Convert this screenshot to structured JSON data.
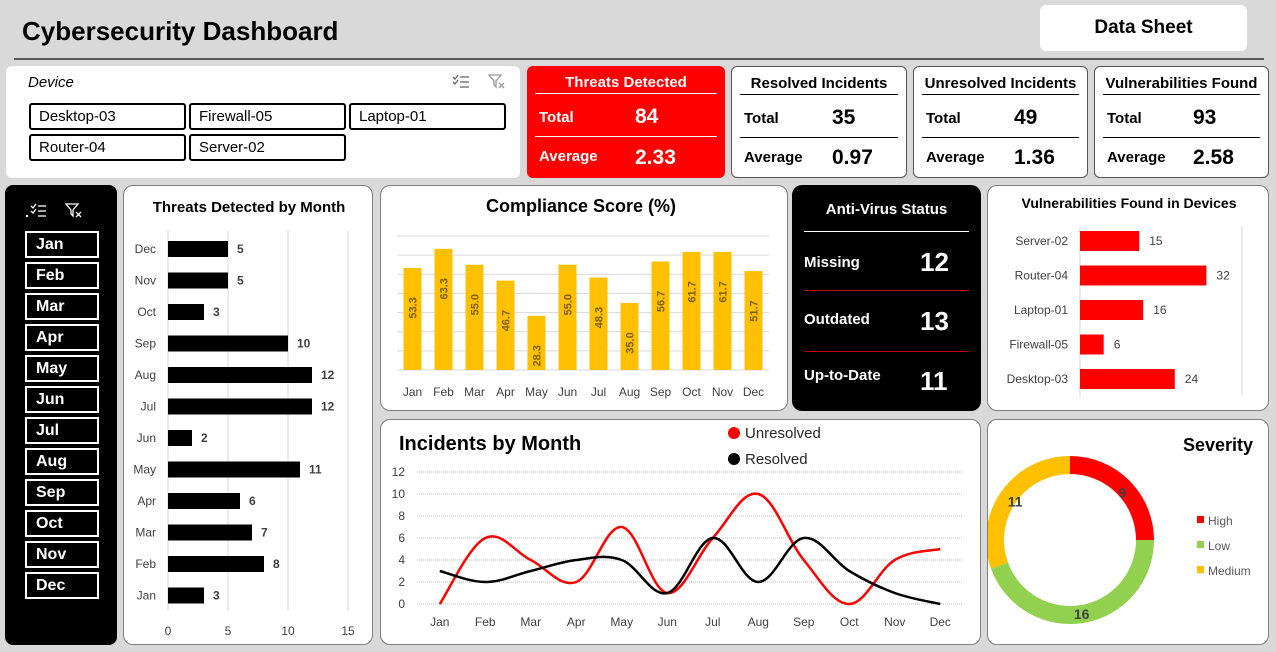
{
  "header": {
    "title": "Cybersecurity Dashboard",
    "data_sheet_label": "Data Sheet"
  },
  "device_slicer": {
    "title": "Device",
    "items": [
      "Desktop-03",
      "Firewall-05",
      "Laptop-01",
      "Router-04",
      "Server-02"
    ]
  },
  "kpis": {
    "threats": {
      "title": "Threats Detected",
      "total_label": "Total",
      "total": "84",
      "avg_label": "Average",
      "average": "2.33"
    },
    "resolved": {
      "title": "Resolved Incidents",
      "total_label": "Total",
      "total": "35",
      "avg_label": "Average",
      "average": "0.97"
    },
    "unresolved": {
      "title": "Unresolved Incidents",
      "total_label": "Total",
      "total": "49",
      "avg_label": "Average",
      "average": "1.36"
    },
    "vulnerabilities": {
      "title": "Vulnerabilities Found",
      "total_label": "Total",
      "total": "93",
      "avg_label": "Average",
      "average": "2.58"
    }
  },
  "month_slicer": {
    "items": [
      "Jan",
      "Feb",
      "Mar",
      "Apr",
      "May",
      "Jun",
      "Jul",
      "Aug",
      "Sep",
      "Oct",
      "Nov",
      "Dec"
    ]
  },
  "antivirus": {
    "title": "Anti-Virus Status",
    "rows": [
      {
        "label": "Missing",
        "value": "12"
      },
      {
        "label": "Outdated",
        "value": "13"
      },
      {
        "label": "Up-to-Date",
        "value": "11"
      }
    ]
  },
  "colors": {
    "red": "#ff0000",
    "gold": "#ffc000",
    "green": "#92d050",
    "black": "#000000"
  },
  "chart_data": [
    {
      "id": "threats_by_month",
      "type": "bar",
      "orientation": "horizontal",
      "title": "Threats Detected by Month",
      "categories": [
        "Jan",
        "Feb",
        "Mar",
        "Apr",
        "May",
        "Jun",
        "Jul",
        "Aug",
        "Sep",
        "Oct",
        "Nov",
        "Dec"
      ],
      "values": [
        3,
        8,
        7,
        6,
        11,
        2,
        12,
        12,
        10,
        3,
        5,
        5
      ],
      "xlim": [
        0,
        15
      ],
      "xticks": [
        0,
        5,
        10,
        15
      ],
      "grid": true
    },
    {
      "id": "compliance_score",
      "type": "bar",
      "title": "Compliance Score (%)",
      "categories": [
        "Jan",
        "Feb",
        "Mar",
        "Apr",
        "May",
        "Jun",
        "Jul",
        "Aug",
        "Sep",
        "Oct",
        "Nov",
        "Dec"
      ],
      "values": [
        53.3,
        63.3,
        55.0,
        46.7,
        28.3,
        55.0,
        48.3,
        35.0,
        56.7,
        61.7,
        61.7,
        51.7
      ],
      "ylim": [
        0,
        70
      ],
      "grid": true
    },
    {
      "id": "vulns_by_device",
      "type": "bar",
      "orientation": "horizontal",
      "title": "Vulnerabilities Found in Devices",
      "categories": [
        "Server-02",
        "Router-04",
        "Laptop-01",
        "Firewall-05",
        "Desktop-03"
      ],
      "values": [
        15,
        32,
        16,
        6,
        24
      ],
      "xlim": [
        0,
        40
      ]
    },
    {
      "id": "incidents_by_month",
      "type": "line",
      "title": "Incidents by Month",
      "categories": [
        "Jan",
        "Feb",
        "Mar",
        "Apr",
        "May",
        "Jun",
        "Jul",
        "Aug",
        "Sep",
        "Oct",
        "Nov",
        "Dec"
      ],
      "series": [
        {
          "name": "Unresolved",
          "color": "#ff0000",
          "values": [
            0,
            6,
            4,
            2,
            7,
            1,
            6,
            10,
            4,
            0,
            4,
            5
          ]
        },
        {
          "name": "Resolved",
          "color": "#000000",
          "values": [
            3,
            2,
            3,
            4,
            4,
            1,
            6,
            2,
            6,
            3,
            1,
            0
          ]
        }
      ],
      "ylim": [
        0,
        12
      ],
      "yticks": [
        0,
        2,
        4,
        6,
        8,
        10,
        12
      ],
      "legend": "top"
    },
    {
      "id": "severity",
      "type": "pie",
      "donut": true,
      "title": "Severity",
      "slices": [
        {
          "label": "High",
          "value": 9,
          "color": "#ff0000"
        },
        {
          "label": "Low",
          "value": 16,
          "color": "#92d050"
        },
        {
          "label": "Medium",
          "value": 11,
          "color": "#ffc000"
        }
      ],
      "legend": "right"
    }
  ]
}
